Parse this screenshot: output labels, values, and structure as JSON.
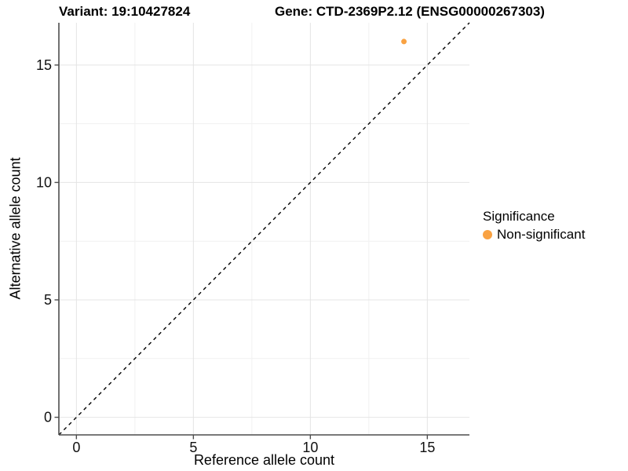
{
  "chart_data": {
    "type": "scatter",
    "title_left": "Variant: 19:10427824",
    "title_right": "Gene: CTD-2369P2.12 (ENSG00000267303)",
    "xlabel": "Reference allele count",
    "ylabel": "Alternative allele count",
    "xlim": [
      -0.75,
      16.8
    ],
    "ylim": [
      -0.75,
      16.8
    ],
    "xticks": [
      0,
      5,
      10,
      15
    ],
    "yticks": [
      0,
      5,
      10,
      15
    ],
    "minor_gridlines": [
      2.5,
      7.5,
      12.5
    ],
    "grid": true,
    "identity_line": {
      "slope": 1,
      "intercept": 0,
      "style": "dashed",
      "color": "#000000"
    },
    "series": [
      {
        "name": "Non-significant",
        "color": "#F9A242",
        "points": [
          {
            "x": 14,
            "y": 16
          }
        ]
      }
    ],
    "legend": {
      "title": "Significance",
      "position": "right",
      "items": [
        {
          "label": "Non-significant",
          "color": "#F9A242"
        }
      ]
    }
  },
  "colors": {
    "background": "#ffffff",
    "axis_line": "#4d4d4d",
    "grid_major": "#e4e4e4",
    "grid_minor": "#f1f1f1",
    "tick_label": "#111111",
    "point": "#F9A242"
  }
}
